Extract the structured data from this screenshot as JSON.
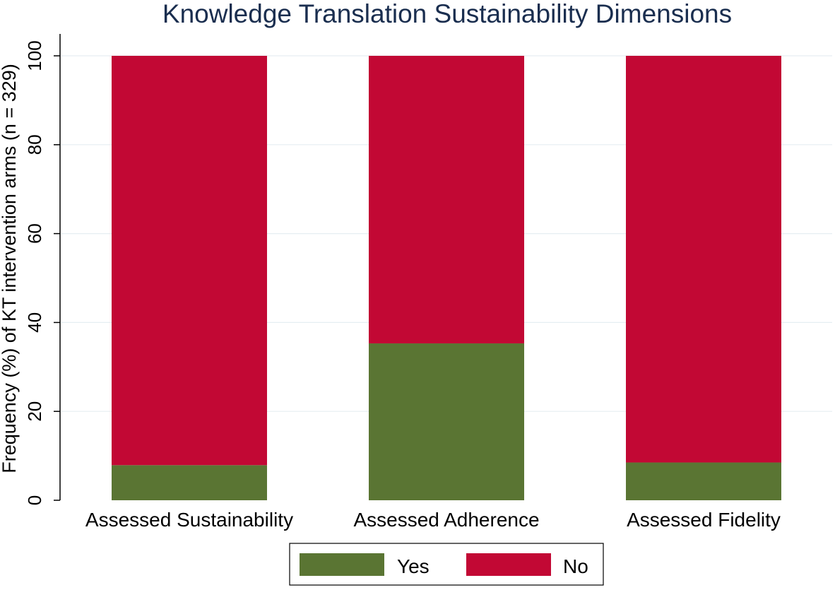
{
  "chart_data": {
    "type": "bar",
    "stacked": true,
    "title": "Knowledge Translation Sustainability Dimensions",
    "xlabel": "",
    "ylabel": "Frequency (%) of KT intervention arms (n = 329)",
    "categories": [
      "Assessed Sustainability",
      "Assessed Adherence",
      "Assessed Fidelity"
    ],
    "series": [
      {
        "name": "Yes",
        "color": "#5a7533",
        "values": [
          7.9,
          35.3,
          8.5
        ]
      },
      {
        "name": "No",
        "color": "#c20834",
        "values": [
          92.1,
          64.7,
          91.5
        ]
      }
    ],
    "ylim": [
      0,
      100
    ],
    "yticks": [
      0,
      20,
      40,
      60,
      80,
      100
    ],
    "grid": true,
    "legend_position": "bottom"
  },
  "colors": {
    "title": "#1a2e4f",
    "axis": "#000000",
    "grid": "#e6eef2",
    "background": "#ffffff"
  }
}
